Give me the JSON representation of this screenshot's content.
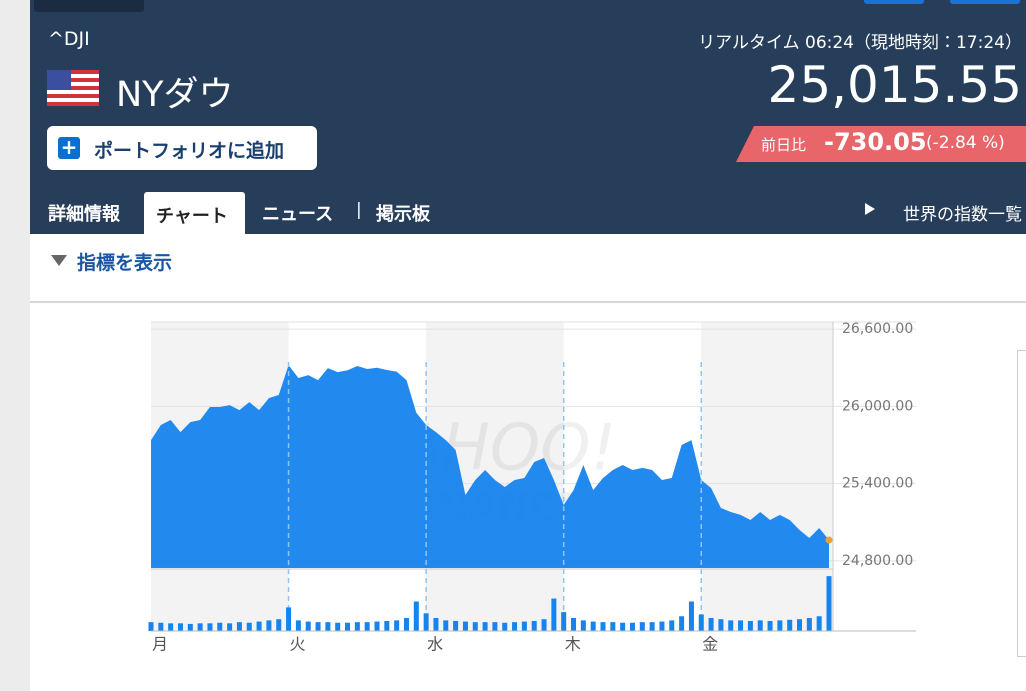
{
  "header": {
    "symbol": "^DJI",
    "realtime": "リアルタイム 06:24（現地時刻：17:24）",
    "name": "NYダウ",
    "price": "25,015.55",
    "add_button": "ポートフォリオに追加",
    "change_label": "前日比",
    "change": "-730.05",
    "change_pct": "(-2.84 %)"
  },
  "tabs": {
    "items": [
      "詳細情報",
      "チャート",
      "ニュース",
      "掲示板"
    ],
    "separator": "|",
    "active": 1,
    "world_link": "世界の指数一覧"
  },
  "indicator_toggle": "指標を表示",
  "chart_data": {
    "type": "area",
    "watermark": [
      "YAHOO!",
      "FINANCE"
    ],
    "categories": [
      "月",
      null,
      null,
      null,
      null,
      null,
      null,
      null,
      null,
      null,
      null,
      null,
      null,
      null,
      "火",
      null,
      null,
      null,
      null,
      null,
      null,
      null,
      null,
      null,
      null,
      null,
      null,
      null,
      "水",
      null,
      null,
      null,
      null,
      null,
      null,
      null,
      null,
      null,
      null,
      null,
      null,
      null,
      "木",
      null,
      null,
      null,
      null,
      null,
      null,
      null,
      null,
      null,
      null,
      null,
      null,
      null,
      "金",
      null,
      null,
      null,
      null,
      null,
      null,
      null,
      null,
      null,
      null,
      null,
      null,
      null
    ],
    "series": [
      {
        "name": "price",
        "color": "#1683ee",
        "values": [
          25738,
          25855,
          25894,
          25800,
          25878,
          25894,
          25995,
          25995,
          26010,
          25971,
          26033,
          25971,
          26064,
          26088,
          26320,
          26220,
          26243,
          26204,
          26297,
          26266,
          26280,
          26313,
          26290,
          26300,
          26282,
          26270,
          26204,
          25950,
          25855,
          25800,
          25738,
          25661,
          25312,
          25428,
          25506,
          25428,
          25374,
          25428,
          25444,
          25568,
          25599,
          25428,
          25234,
          25350,
          25545,
          25350,
          25444,
          25506,
          25545,
          25506,
          25522,
          25506,
          25428,
          25444,
          25700,
          25738,
          25428,
          25366,
          25211,
          25180,
          25157,
          25118,
          25180,
          25118,
          25157,
          25118,
          25040,
          24978,
          25056,
          24962
        ]
      },
      {
        "name": "volume",
        "color": "#1683ee",
        "axis": "y2",
        "values": [
          15,
          14,
          13,
          13,
          12,
          13,
          13,
          14,
          13,
          15,
          14,
          16,
          18,
          20,
          40,
          18,
          16,
          15,
          15,
          14,
          14,
          15,
          15,
          16,
          17,
          18,
          22,
          50,
          30,
          22,
          18,
          17,
          16,
          15,
          15,
          15,
          14,
          15,
          16,
          17,
          20,
          55,
          32,
          22,
          18,
          16,
          15,
          15,
          14,
          14,
          15,
          15,
          16,
          18,
          25,
          50,
          28,
          22,
          20,
          18,
          18,
          17,
          18,
          17,
          18,
          19,
          20,
          22,
          25,
          93
        ]
      }
    ],
    "ylim": [
      24745,
      26655
    ],
    "yticks": [
      {
        "value": 26600,
        "label": "26,600.00"
      },
      {
        "value": 26000,
        "label": "26,000.00"
      },
      {
        "value": 25400,
        "label": "25,400.00"
      },
      {
        "value": 24800,
        "label": "24,800.00"
      }
    ],
    "y2lim": [
      0,
      100
    ],
    "grid": true,
    "last_point_color": "#f0a030"
  }
}
